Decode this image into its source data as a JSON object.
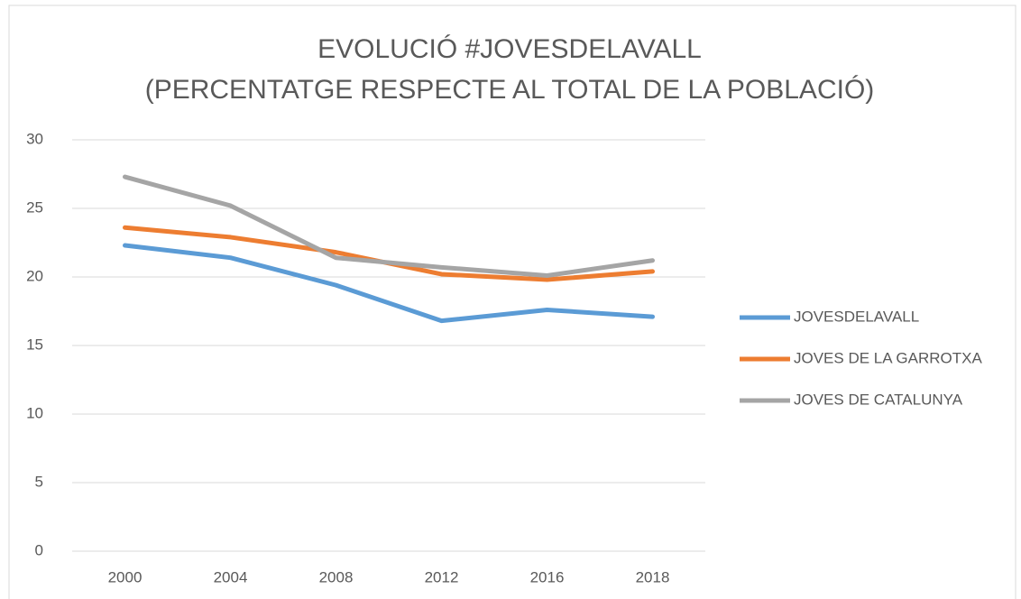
{
  "chart_data": {
    "type": "line",
    "title": "EVOLUCIÓ #JOVESDELAVALL",
    "subtitle": "(PERCENTATGE RESPECTE AL TOTAL DE LA POBLACIÓ)",
    "categories": [
      "2000",
      "2004",
      "2008",
      "2012",
      "2016",
      "2018"
    ],
    "series": [
      {
        "name": "JOVESDELAVALL",
        "color": "#5b9bd5",
        "values": [
          22.3,
          21.4,
          19.4,
          16.8,
          17.6,
          17.1
        ]
      },
      {
        "name": "JOVES DE LA GARROTXA",
        "color": "#ed7d31",
        "values": [
          23.6,
          22.9,
          21.8,
          20.2,
          19.8,
          20.4
        ]
      },
      {
        "name": "JOVES DE CATALUNYA",
        "color": "#a5a5a5",
        "values": [
          27.3,
          25.2,
          21.4,
          20.7,
          20.1,
          21.2
        ]
      }
    ],
    "ylim": [
      0,
      30
    ],
    "yticks": [
      0,
      5,
      10,
      15,
      20,
      25,
      30
    ],
    "grid": true,
    "legend": "right"
  }
}
